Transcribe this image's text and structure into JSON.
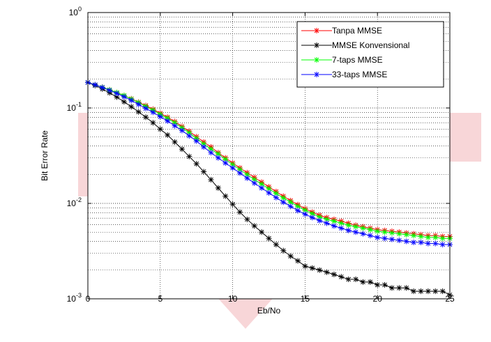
{
  "chart_data": {
    "type": "line",
    "title": "",
    "xlabel": "Eb/No",
    "ylabel": "Bit  Error  Rate",
    "xlim": [
      0,
      25
    ],
    "ylim": [
      0.001,
      1
    ],
    "yscale": "log",
    "grid": true,
    "legend_position": "top-right",
    "x_ticks": [
      "0",
      "5",
      "10",
      "15",
      "20",
      "25"
    ],
    "y_ticks": [
      {
        "base": "10",
        "exp": "-3",
        "value": 0.001
      },
      {
        "base": "10",
        "exp": "-2",
        "value": 0.01
      },
      {
        "base": "10",
        "exp": "-1",
        "value": 0.1
      },
      {
        "base": "10",
        "exp": "0",
        "value": 1
      }
    ],
    "x": [
      0,
      0.5,
      1,
      1.5,
      2,
      2.5,
      3,
      3.5,
      4,
      4.5,
      5,
      5.5,
      6,
      6.5,
      7,
      7.5,
      8,
      8.5,
      9,
      9.5,
      10,
      10.5,
      11,
      11.5,
      12,
      12.5,
      13,
      13.5,
      14,
      14.5,
      15,
      15.5,
      16,
      16.5,
      17,
      17.5,
      18,
      18.5,
      19,
      19.5,
      20,
      20.5,
      21,
      21.5,
      22,
      22.5,
      23,
      23.5,
      24,
      24.5,
      25
    ],
    "series": [
      {
        "name": "Tanpa  MMSE",
        "color": "#ff0000",
        "values": [
          0.185,
          0.175,
          0.165,
          0.155,
          0.145,
          0.135,
          0.125,
          0.115,
          0.106,
          0.097,
          0.088,
          0.08,
          0.072,
          0.064,
          0.057,
          0.05,
          0.044,
          0.039,
          0.034,
          0.03,
          0.0265,
          0.0235,
          0.021,
          0.0187,
          0.0167,
          0.0149,
          0.0133,
          0.0119,
          0.0107,
          0.0097,
          0.0088,
          0.0081,
          0.0075,
          0.0071,
          0.0068,
          0.0065,
          0.0062,
          0.0059,
          0.0057,
          0.0055,
          0.0053,
          0.0052,
          0.0051,
          0.005,
          0.0049,
          0.0048,
          0.0047,
          0.0046,
          0.0046,
          0.0045,
          0.0045
        ]
      },
      {
        "name": "MMSE  Konvensional",
        "color": "#000000",
        "values": [
          0.185,
          0.172,
          0.158,
          0.144,
          0.13,
          0.116,
          0.103,
          0.091,
          0.08,
          0.07,
          0.06,
          0.052,
          0.044,
          0.037,
          0.031,
          0.026,
          0.0215,
          0.0177,
          0.0145,
          0.0119,
          0.0098,
          0.0081,
          0.0068,
          0.0058,
          0.005,
          0.0043,
          0.0037,
          0.0032,
          0.0028,
          0.0025,
          0.0022,
          0.0021,
          0.002,
          0.0019,
          0.0018,
          0.0017,
          0.0016,
          0.0016,
          0.0015,
          0.0015,
          0.0014,
          0.0014,
          0.0013,
          0.0013,
          0.0013,
          0.0012,
          0.0012,
          0.0012,
          0.0012,
          0.0012,
          0.0011
        ]
      },
      {
        "name": "7-taps  MMSE",
        "color": "#00ff00",
        "values": [
          0.185,
          0.175,
          0.165,
          0.155,
          0.145,
          0.135,
          0.124,
          0.114,
          0.104,
          0.095,
          0.086,
          0.078,
          0.07,
          0.062,
          0.055,
          0.048,
          0.042,
          0.037,
          0.033,
          0.029,
          0.0255,
          0.0226,
          0.02,
          0.0178,
          0.0159,
          0.0142,
          0.0127,
          0.0114,
          0.0103,
          0.0093,
          0.0085,
          0.0078,
          0.0072,
          0.0068,
          0.0065,
          0.0062,
          0.0059,
          0.0057,
          0.0055,
          0.0053,
          0.0051,
          0.005,
          0.0049,
          0.0048,
          0.0047,
          0.0046,
          0.0045,
          0.0044,
          0.0044,
          0.0043,
          0.0043
        ]
      },
      {
        "name": "33-taps  MMSE",
        "color": "#0000ff",
        "values": [
          0.185,
          0.175,
          0.164,
          0.153,
          0.142,
          0.131,
          0.12,
          0.109,
          0.099,
          0.09,
          0.081,
          0.073,
          0.065,
          0.058,
          0.051,
          0.045,
          0.039,
          0.034,
          0.03,
          0.0265,
          0.0235,
          0.0208,
          0.0184,
          0.0163,
          0.0145,
          0.0129,
          0.0115,
          0.0103,
          0.0093,
          0.0084,
          0.0077,
          0.0071,
          0.0066,
          0.0062,
          0.0058,
          0.0055,
          0.0052,
          0.005,
          0.0048,
          0.0046,
          0.0044,
          0.0043,
          0.0042,
          0.0041,
          0.004,
          0.0039,
          0.0039,
          0.0038,
          0.0038,
          0.0037,
          0.0037
        ]
      }
    ]
  },
  "watermark": {
    "color": "#f8d6d8",
    "label": ""
  }
}
